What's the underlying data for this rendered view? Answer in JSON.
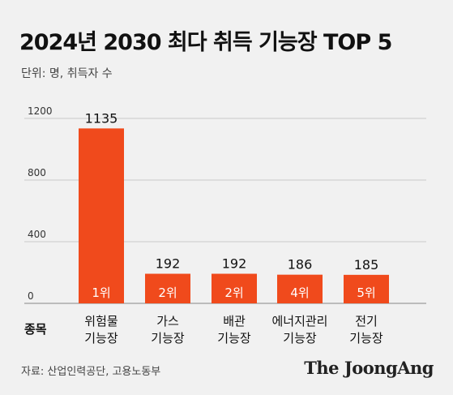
{
  "title": "2024년 2030 최다 취득 기능장 TOP 5",
  "unit_note": "단위: 명, 취득자 수",
  "source": "자료: 산업인력공단, 고용노동부",
  "brand": "The JoongAng",
  "colors": {
    "bar": "#f04a1c",
    "background": "#f1f1f1",
    "grid": "#c9c9c9",
    "text": "#111111"
  },
  "chart_data": {
    "type": "bar",
    "title": "2024년 2030 최다 취득 기능장 TOP 5",
    "xlabel": "종목",
    "ylabel": "",
    "ylim": [
      0,
      1200
    ],
    "yticks": [
      0,
      400,
      800,
      1200
    ],
    "grid": true,
    "categories": [
      [
        "위험물",
        "기능장"
      ],
      [
        "가스",
        "기능장"
      ],
      [
        "배관",
        "기능장"
      ],
      [
        "에너지관리",
        "기능장"
      ],
      [
        "전기",
        "기능장"
      ]
    ],
    "values": [
      1135,
      192,
      192,
      186,
      185
    ],
    "rank_labels": [
      "1위",
      "2위",
      "2위",
      "4위",
      "5위"
    ]
  }
}
